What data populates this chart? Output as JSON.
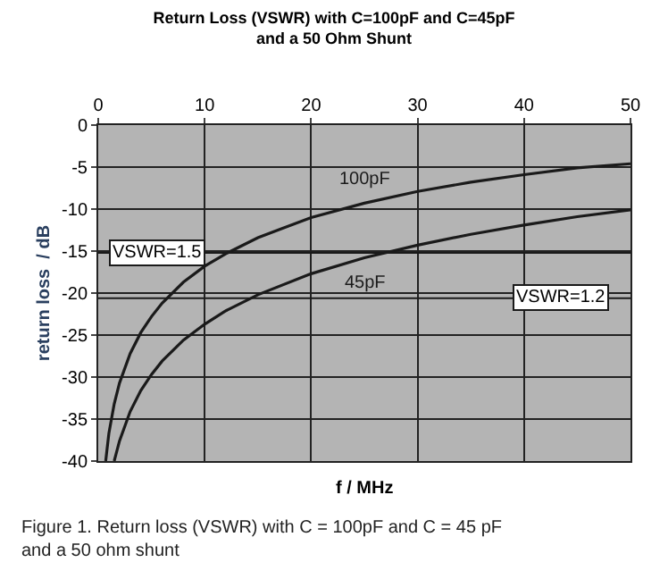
{
  "chart_data": {
    "type": "line",
    "title": "Return Loss (VSWR) with C=100pF and C=45pF\nand a 50 Ohm Shunt",
    "xlabel": "f / MHz",
    "ylabel": "return loss  / dB",
    "x": [
      0.7,
      1,
      1.5,
      2,
      3,
      4,
      5,
      6,
      8,
      10,
      12,
      15,
      20,
      25,
      30,
      35,
      40,
      45,
      50
    ],
    "series": [
      {
        "name": "100pF",
        "color": "#1a1a1a",
        "values": [
          -40,
          -36.7,
          -33.2,
          -30.7,
          -27.2,
          -24.7,
          -22.8,
          -21.2,
          -18.7,
          -16.8,
          -15.3,
          -13.4,
          -11.0,
          -9.3,
          -7.9,
          -6.8,
          -5.9,
          -5.1,
          -4.6
        ]
      },
      {
        "name": "45pF",
        "color": "#1a1a1a",
        "x": [
          1.5,
          2,
          3,
          4,
          5,
          6,
          8,
          10,
          12,
          15,
          20,
          25,
          30,
          35,
          40,
          45,
          50
        ],
        "values": [
          -40,
          -37.6,
          -34.1,
          -31.6,
          -29.7,
          -28.1,
          -25.6,
          -23.7,
          -22.1,
          -20.2,
          -17.7,
          -15.8,
          -14.3,
          -13.0,
          -11.9,
          -10.9,
          -10.1
        ]
      }
    ],
    "xlim": [
      0,
      50
    ],
    "xticks": [
      0,
      10,
      20,
      30,
      40,
      50
    ],
    "ylim": [
      -40,
      0
    ],
    "yticks": [
      0,
      -5,
      -10,
      -15,
      -20,
      -25,
      -30,
      -35,
      -40
    ],
    "grid": true,
    "legend": false,
    "marker": "none",
    "line_style": "solid",
    "ref_lines": [
      {
        "axis": "y",
        "value": -15.2,
        "color": "#1a1a1a"
      },
      {
        "axis": "y",
        "value": -20.6,
        "color": "#1a1a1a"
      }
    ],
    "annotations": [
      {
        "text": "VSWR=1.5",
        "x": 1,
        "y": -15.2
      },
      {
        "text": "VSWR=1.2",
        "x": 48,
        "y": -20.6
      },
      "Figure 1. Return loss (VSWR) with C = 100pF and C = 45 pF\nand a 50 ohm shunt"
    ]
  }
}
